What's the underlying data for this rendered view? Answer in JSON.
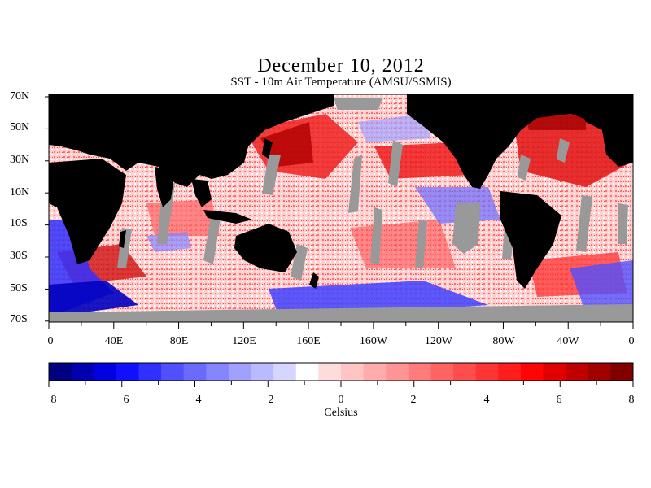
{
  "title": "December 10, 2012",
  "subtitle": "SST - 10m Air Temperature (AMSU/SSMIS)",
  "lat_labels": [
    "70N",
    "50N",
    "30N",
    "10N",
    "10S",
    "30S",
    "50S",
    "70S"
  ],
  "lon_labels": [
    "0",
    "40E",
    "80E",
    "120E",
    "160E",
    "160W",
    "120W",
    "80W",
    "40W",
    "0"
  ],
  "colorbar": {
    "tick_labels": [
      "−8",
      "−6",
      "−4",
      "−2",
      "0",
      "2",
      "4",
      "6",
      "8"
    ],
    "range": [
      -8,
      8
    ],
    "units": "Celsius",
    "colors": [
      "#000080",
      "#0000b0",
      "#0000e0",
      "#1010ff",
      "#3030ff",
      "#5050ff",
      "#6a6aff",
      "#8585ff",
      "#a0a0ff",
      "#babaff",
      "#d5d5ff",
      "#ffffff",
      "#ffdcdc",
      "#ffc4c4",
      "#ffacac",
      "#ff9494",
      "#ff7c7c",
      "#ff6464",
      "#ff4c4c",
      "#ff3434",
      "#ff1c1c",
      "#ff0404",
      "#e00000",
      "#c00000",
      "#a00000",
      "#800000"
    ]
  },
  "map_colors": {
    "land": "#000000",
    "no_data": "#999999",
    "ocean_warm": "#ff8080",
    "ocean_neutral": "#ffe6e6",
    "ocean_cold": "#3030ff"
  }
}
